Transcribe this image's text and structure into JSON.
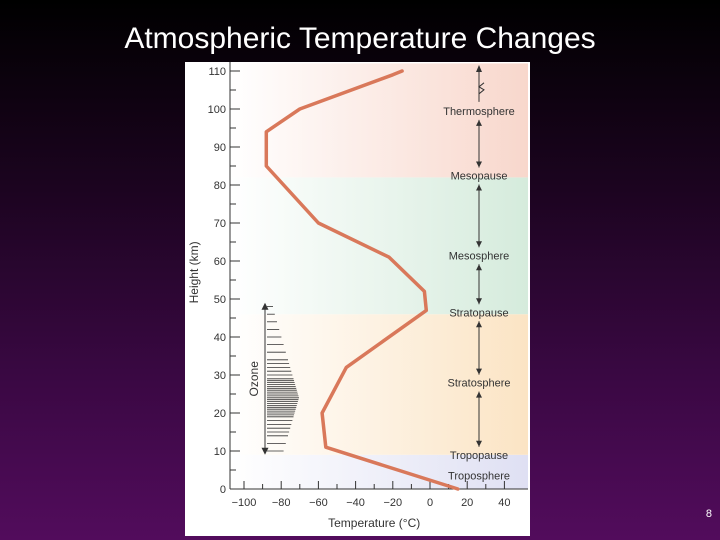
{
  "title": "Atmospheric Temperature Changes",
  "page_number": "8",
  "chart_data": {
    "type": "line",
    "xlabel": "Temperature (°C)",
    "ylabel": "Height (km)",
    "xlim": [
      -100,
      50
    ],
    "ylim": [
      0,
      112
    ],
    "x_ticks": [
      -100,
      -80,
      -60,
      -40,
      -20,
      0,
      20,
      40
    ],
    "x_tick_labels": [
      "−100",
      "−80",
      "−60",
      "−40",
      "−20",
      "0",
      "20",
      "40"
    ],
    "y_ticks": [
      0,
      10,
      20,
      30,
      40,
      50,
      60,
      70,
      80,
      90,
      100,
      110
    ],
    "y_tick_labels": [
      "0",
      "10",
      "20",
      "30",
      "40",
      "50",
      "60",
      "70",
      "80",
      "90",
      "100",
      "110"
    ],
    "series": [
      {
        "color": "#d9785a",
        "points": [
          {
            "x": 15,
            "y": 0
          },
          {
            "x": -56,
            "y": 11
          },
          {
            "x": -58,
            "y": 20
          },
          {
            "x": -45,
            "y": 32
          },
          {
            "x": -2,
            "y": 47
          },
          {
            "x": -3,
            "y": 52
          },
          {
            "x": -22,
            "y": 61
          },
          {
            "x": -60,
            "y": 70
          },
          {
            "x": -88,
            "y": 85
          },
          {
            "x": -88,
            "y": 94
          },
          {
            "x": -70,
            "y": 100
          },
          {
            "x": -20,
            "y": 109
          },
          {
            "x": -15,
            "y": 110
          }
        ]
      }
    ],
    "layers": [
      {
        "name": "Troposphere",
        "bottom": 0,
        "top": 9,
        "color": "#dfe0f3"
      },
      {
        "name": "Stratosphere",
        "bottom": 9,
        "top": 46,
        "color": "#fbe4c4"
      },
      {
        "name": "Mesosphere",
        "bottom": 46,
        "top": 82,
        "color": "#d5ebdc"
      },
      {
        "name": "Thermosphere",
        "bottom": 82,
        "top": 112,
        "color": "#f8d7cc"
      }
    ],
    "boundary_labels": [
      {
        "text": "Troposphere",
        "y": 3.5
      },
      {
        "text": "Tropopause",
        "y": 9
      },
      {
        "text": "Stratosphere",
        "y": 28
      },
      {
        "text": "Stratopause",
        "y": 46.5
      },
      {
        "text": "Mesosphere",
        "y": 61.5
      },
      {
        "text": "Mesopause",
        "y": 82.5
      },
      {
        "text": "Thermosphere",
        "y": 99.5
      }
    ],
    "ozone": {
      "label": "Ozone",
      "bottom": 9,
      "top": 49
    }
  }
}
